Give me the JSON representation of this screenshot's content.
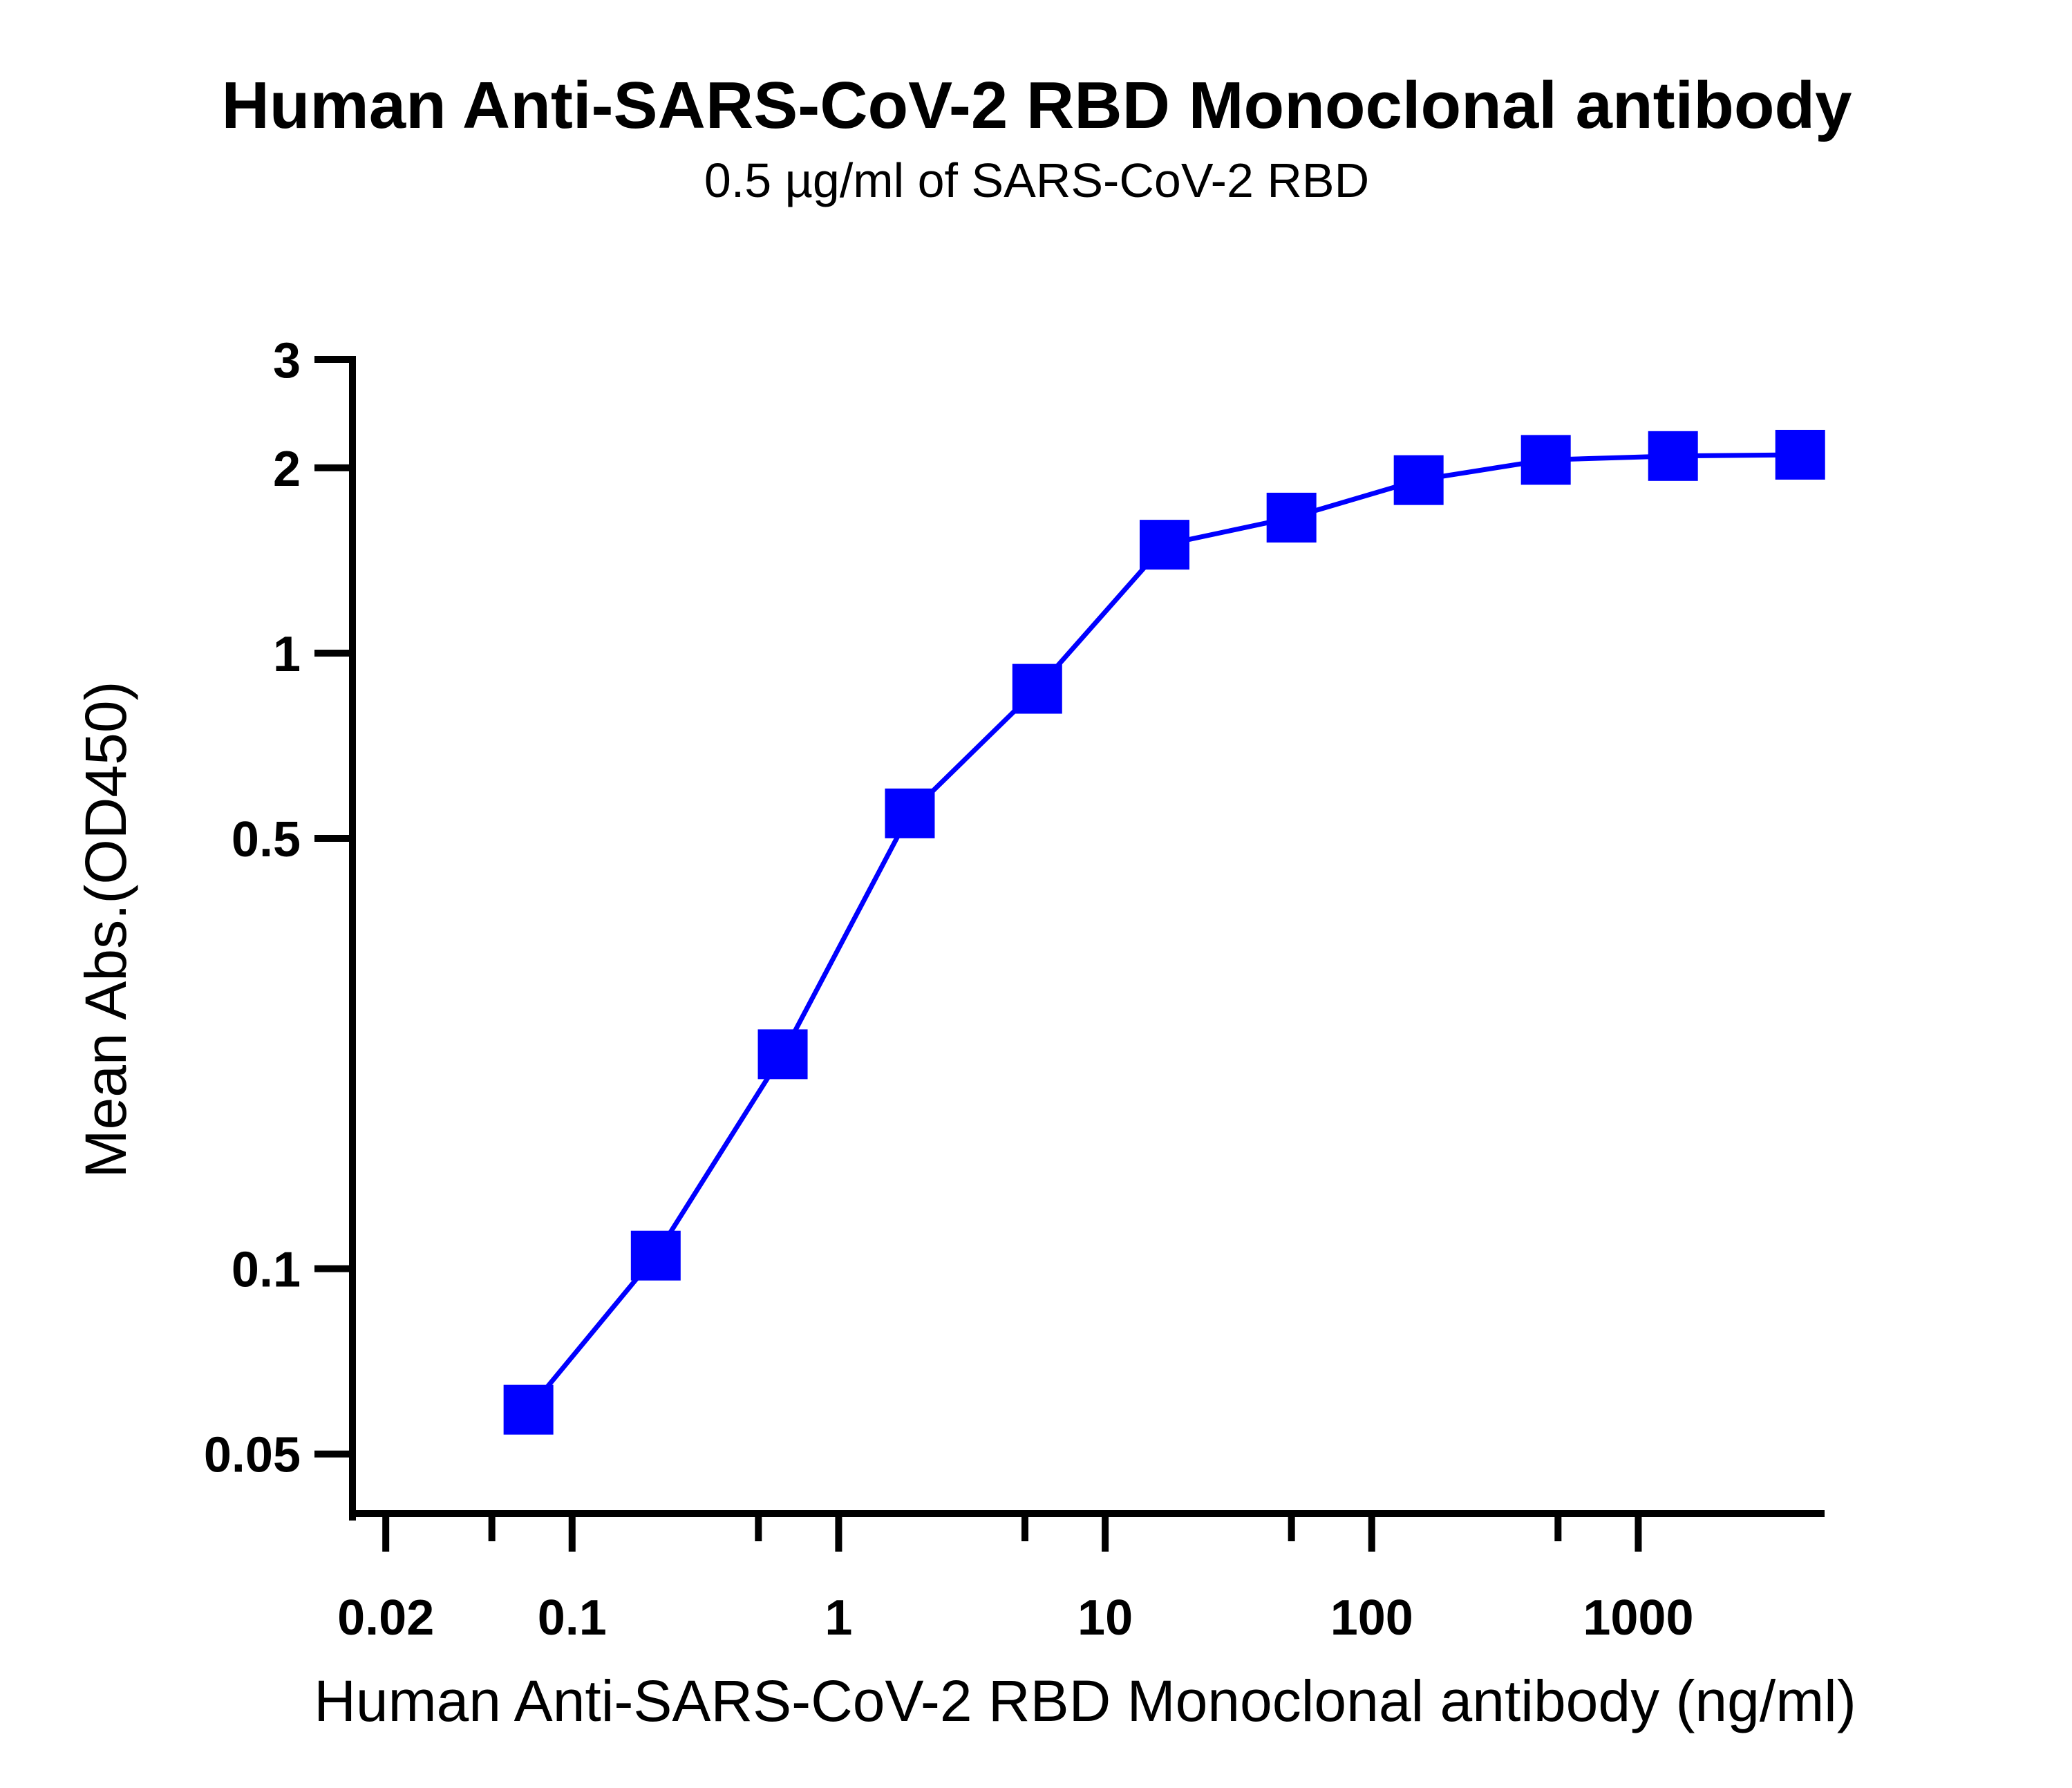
{
  "chart_data": {
    "type": "line",
    "title": "Human Anti-SARS-CoV-2 RBD Monoclonal antibody",
    "subtitle": "0.5 µg/ml of SARS-CoV-2 RBD",
    "xlabel": "Human Anti-SARS-CoV-2 RBD Monoclonal antibody (ng/ml)",
    "ylabel": "Mean Abs.(OD450)",
    "x_scale": "log",
    "y_scale": "log",
    "xlim": [
      0.015,
      5000
    ],
    "ylim": [
      0.04,
      3
    ],
    "x_ticks": [
      {
        "value": 0.02,
        "label": "0.02"
      },
      {
        "value": 0.1,
        "label": "0.1"
      },
      {
        "value": 1,
        "label": "1"
      },
      {
        "value": 10,
        "label": "10"
      },
      {
        "value": 100,
        "label": "100"
      },
      {
        "value": 1000,
        "label": "1000"
      }
    ],
    "y_ticks": [
      {
        "value": 0.05,
        "label": "0.05"
      },
      {
        "value": 0.1,
        "label": "0.1"
      },
      {
        "value": 0.5,
        "label": "0.5"
      },
      {
        "value": 1,
        "label": "1"
      },
      {
        "value": 2,
        "label": "2"
      },
      {
        "value": 3,
        "label": "3"
      }
    ],
    "grid": false,
    "legend": "none",
    "series": [
      {
        "color": "#0000ff",
        "marker": "square",
        "x": [
          0.0686,
          0.206,
          0.617,
          1.85,
          5.56,
          16.7,
          50,
          150,
          450,
          1350,
          4050
        ],
        "y": [
          0.059,
          0.105,
          0.223,
          0.549,
          0.875,
          1.5,
          1.66,
          1.91,
          2.06,
          2.09,
          2.1
        ]
      }
    ]
  }
}
